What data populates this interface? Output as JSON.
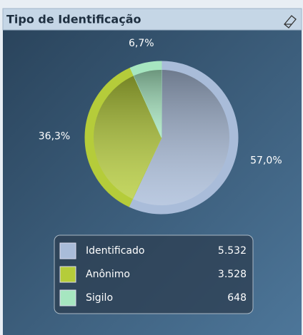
{
  "chart_data": {
    "type": "pie",
    "title": "Tipo de Identificação",
    "categories": [
      "Identificado",
      "Anônimo",
      "Sigilo"
    ],
    "values": [
      57.0,
      36.3,
      6.7
    ],
    "value_labels": [
      "57,0%",
      "36,3%",
      "6,7%"
    ],
    "counts": [
      5532,
      3528,
      648
    ],
    "count_labels": [
      "5.532",
      "3.528",
      "648"
    ],
    "colors": [
      "#a9bcd9",
      "#b5cc3a",
      "#a6e6c0"
    ]
  }
}
